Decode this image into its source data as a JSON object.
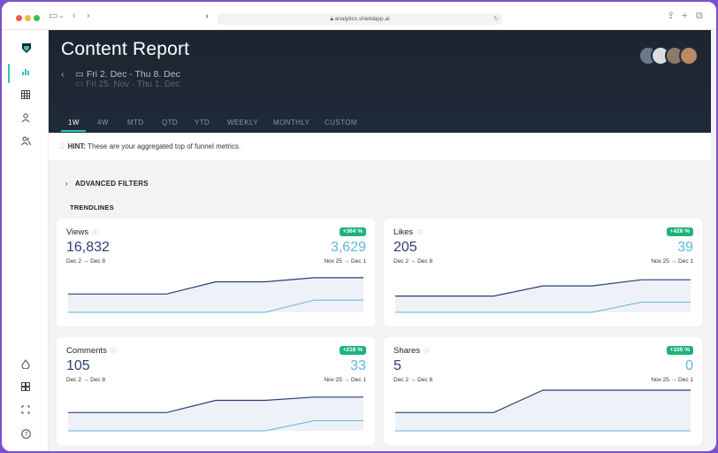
{
  "browser": {
    "url": "analytics.shieldapp.ai",
    "colors": {
      "close": "#ee5a52",
      "minimize": "#f3b93c",
      "zoom": "#3cc049"
    }
  },
  "sidebar": {
    "items": [
      {
        "icon": "logo-icon"
      },
      {
        "icon": "bar-chart-icon",
        "active": true
      },
      {
        "icon": "table-icon"
      },
      {
        "icon": "user-icon"
      },
      {
        "icon": "users-icon"
      },
      {
        "icon": "flame-icon"
      },
      {
        "icon": "grid-icon"
      },
      {
        "icon": "expand-icon"
      },
      {
        "icon": "help-icon"
      }
    ]
  },
  "header": {
    "title": "Content Report",
    "date_range": "Fri 2. Dec - Thu 8. Dec",
    "compare_range": "Fri 25. Nov - Thu 1. Dec",
    "tabs": [
      "1W",
      "4W",
      "MTD",
      "QTD",
      "YTD",
      "WEEKLY",
      "MONTHLY",
      "CUSTOM"
    ],
    "active_tab": "1W"
  },
  "hint": {
    "label": "HINT:",
    "text": "These are your aggregated top of funnel metrics."
  },
  "filters": {
    "label": "ADVANCED FILTERS"
  },
  "section": {
    "label": "TRENDLINES"
  },
  "cards": [
    {
      "title": "Views",
      "badge": "+364 %",
      "current": "16,832",
      "previous": "3,629",
      "current_range": "Dec 2 → Dec 8",
      "previous_range": "Nov 25 → Dec 1",
      "current_series": [
        0.45,
        0.45,
        0.45,
        0.75,
        0.75,
        0.85,
        0.85
      ],
      "previous_series": [
        0.0,
        0.0,
        0.0,
        0.0,
        0.0,
        0.3,
        0.3
      ]
    },
    {
      "title": "Likes",
      "badge": "+426 %",
      "current": "205",
      "previous": "39",
      "current_range": "Dec 2 → Dec 8",
      "previous_range": "Nov 25 → Dec 1",
      "current_series": [
        0.4,
        0.4,
        0.4,
        0.65,
        0.65,
        0.8,
        0.8
      ],
      "previous_series": [
        0.0,
        0.0,
        0.0,
        0.0,
        0.0,
        0.25,
        0.25
      ]
    },
    {
      "title": "Comments",
      "badge": "+218 %",
      "current": "105",
      "previous": "33",
      "current_range": "Dec 2 → Dec 8",
      "previous_range": "Nov 25 → Dec 1",
      "current_series": [
        0.45,
        0.45,
        0.45,
        0.75,
        0.75,
        0.83,
        0.83
      ],
      "previous_series": [
        0.0,
        0.0,
        0.0,
        0.0,
        0.0,
        0.25,
        0.25
      ]
    },
    {
      "title": "Shares",
      "badge": "+100 %",
      "current": "5",
      "previous": "0",
      "current_range": "Dec 2 → Dec 8",
      "previous_range": "Nov 25 → Dec 1",
      "current_series": [
        0.45,
        0.45,
        0.45,
        1.0,
        1.0,
        1.0,
        1.0
      ],
      "previous_series": [
        0.0,
        0.0,
        0.0,
        0.0,
        0.0,
        0.0,
        0.0
      ]
    }
  ],
  "colors": {
    "accent": "#2ec4b6",
    "badge": "#1fb27a",
    "current_line": "#2b3f72",
    "previous_line": "#5fb6dd",
    "area": "#eef1f7"
  }
}
